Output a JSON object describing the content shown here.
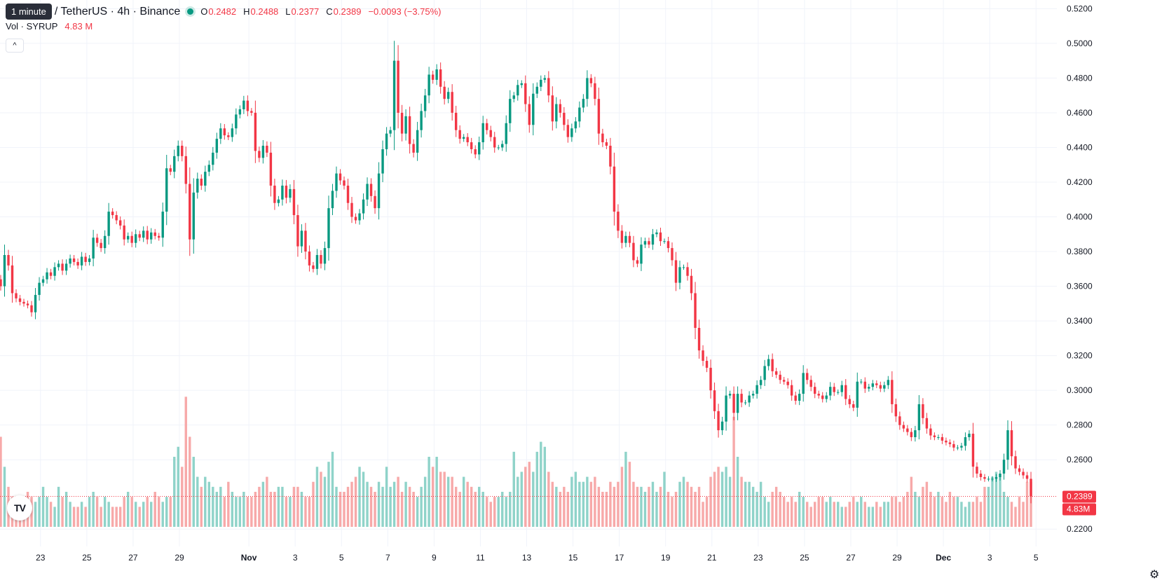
{
  "header": {
    "tooltip": "1 minute",
    "symbol": "/ TetherUS · 4h · Binance",
    "ohlc": [
      {
        "key": "O",
        "value": "0.2482"
      },
      {
        "key": "H",
        "value": "0.2488"
      },
      {
        "key": "L",
        "value": "0.2377"
      },
      {
        "key": "C",
        "value": "0.2389"
      }
    ],
    "change": "−0.0093 (−3.75%)",
    "volume_label": "Vol · SYRUP",
    "volume_value": "4.83 M",
    "collapse_glyph": "^"
  },
  "colors": {
    "up": "#089981",
    "down": "#f23645",
    "up_vol": "#8fd3c9",
    "down_vol": "#f7a9a9",
    "grid": "#f0f3fa"
  },
  "icons": {
    "logo": "tradingview-logo-icon",
    "settings": "gear-icon",
    "collapse": "chevron-up-icon"
  },
  "chart_data": {
    "type": "candlestick",
    "y_axis": {
      "min": 0.21,
      "max": 0.525,
      "ticks": [
        "0.5200",
        "0.5000",
        "0.4800",
        "0.4600",
        "0.4400",
        "0.4200",
        "0.4000",
        "0.3800",
        "0.3600",
        "0.3400",
        "0.3200",
        "0.3000",
        "0.2800",
        "0.2600",
        "0.2200"
      ]
    },
    "x_axis_labels": [
      {
        "label": "23",
        "day": 23
      },
      {
        "label": "25",
        "day": 25
      },
      {
        "label": "27",
        "day": 27
      },
      {
        "label": "29",
        "day": 29
      },
      {
        "label": "Nov",
        "day": 32,
        "bold": true
      },
      {
        "label": "3",
        "day": 34
      },
      {
        "label": "5",
        "day": 36
      },
      {
        "label": "7",
        "day": 38
      },
      {
        "label": "9",
        "day": 40
      },
      {
        "label": "11",
        "day": 42
      },
      {
        "label": "13",
        "day": 44
      },
      {
        "label": "15",
        "day": 46
      },
      {
        "label": "17",
        "day": 48
      },
      {
        "label": "19",
        "day": 50
      },
      {
        "label": "21",
        "day": 52
      },
      {
        "label": "23",
        "day": 54
      },
      {
        "label": "25",
        "day": 56
      },
      {
        "label": "27",
        "day": 58
      },
      {
        "label": "29",
        "day": 60
      },
      {
        "label": "Dec",
        "day": 62,
        "bold": true
      },
      {
        "label": "3",
        "day": 64
      },
      {
        "label": "5",
        "day": 66
      }
    ],
    "x_range_days": [
      21.25,
      66.9
    ],
    "candle_start_day": 21.28,
    "candle_interval_days": 0.16667,
    "last_price": "0.2389",
    "last_volume": "4.83M",
    "closes": [
      0.36,
      0.378,
      0.372,
      0.356,
      0.353,
      0.351,
      0.35,
      0.349,
      0.345,
      0.355,
      0.362,
      0.364,
      0.368,
      0.366,
      0.371,
      0.373,
      0.369,
      0.373,
      0.376,
      0.374,
      0.372,
      0.377,
      0.374,
      0.376,
      0.388,
      0.385,
      0.382,
      0.389,
      0.403,
      0.401,
      0.398,
      0.395,
      0.387,
      0.389,
      0.385,
      0.39,
      0.388,
      0.392,
      0.387,
      0.391,
      0.389,
      0.388,
      0.403,
      0.428,
      0.426,
      0.435,
      0.441,
      0.435,
      0.419,
      0.387,
      0.414,
      0.422,
      0.418,
      0.426,
      0.43,
      0.437,
      0.445,
      0.451,
      0.447,
      0.446,
      0.451,
      0.459,
      0.462,
      0.467,
      0.461,
      0.46,
      0.438,
      0.434,
      0.441,
      0.437,
      0.418,
      0.408,
      0.41,
      0.418,
      0.411,
      0.416,
      0.401,
      0.383,
      0.392,
      0.38,
      0.372,
      0.37,
      0.378,
      0.373,
      0.382,
      0.405,
      0.415,
      0.425,
      0.421,
      0.418,
      0.408,
      0.4,
      0.398,
      0.402,
      0.41,
      0.419,
      0.412,
      0.405,
      0.425,
      0.439,
      0.448,
      0.45,
      0.49,
      0.46,
      0.448,
      0.458,
      0.442,
      0.437,
      0.45,
      0.461,
      0.47,
      0.482,
      0.479,
      0.485,
      0.475,
      0.468,
      0.472,
      0.46,
      0.45,
      0.445,
      0.446,
      0.443,
      0.439,
      0.436,
      0.443,
      0.454,
      0.45,
      0.446,
      0.44,
      0.44,
      0.442,
      0.454,
      0.468,
      0.47,
      0.476,
      0.477,
      0.465,
      0.453,
      0.471,
      0.475,
      0.479,
      0.48,
      0.47,
      0.455,
      0.465,
      0.46,
      0.453,
      0.446,
      0.451,
      0.455,
      0.463,
      0.468,
      0.48,
      0.477,
      0.468,
      0.448,
      0.443,
      0.441,
      0.429,
      0.403,
      0.392,
      0.385,
      0.389,
      0.385,
      0.375,
      0.373,
      0.384,
      0.386,
      0.384,
      0.39,
      0.391,
      0.386,
      0.386,
      0.382,
      0.375,
      0.362,
      0.371,
      0.371,
      0.366,
      0.356,
      0.336,
      0.323,
      0.317,
      0.313,
      0.3,
      0.288,
      0.277,
      0.282,
      0.297,
      0.298,
      0.287,
      0.298,
      0.293,
      0.293,
      0.297,
      0.298,
      0.303,
      0.306,
      0.314,
      0.318,
      0.311,
      0.309,
      0.306,
      0.305,
      0.303,
      0.297,
      0.294,
      0.298,
      0.31,
      0.306,
      0.302,
      0.298,
      0.297,
      0.295,
      0.297,
      0.302,
      0.299,
      0.299,
      0.303,
      0.295,
      0.292,
      0.29,
      0.305,
      0.305,
      0.301,
      0.302,
      0.304,
      0.303,
      0.301,
      0.303,
      0.306,
      0.292,
      0.285,
      0.28,
      0.278,
      0.276,
      0.273,
      0.277,
      0.292,
      0.284,
      0.278,
      0.274,
      0.273,
      0.273,
      0.271,
      0.27,
      0.269,
      0.267,
      0.267,
      0.268,
      0.273,
      0.275,
      0.256,
      0.252,
      0.25,
      0.249,
      0.249,
      0.249,
      0.25,
      0.252,
      0.26,
      0.277,
      0.262,
      0.255,
      0.253,
      0.251,
      0.249,
      0.2389
    ],
    "volumes": [
      0.9,
      0.6,
      0.4,
      0.3,
      0.3,
      0.3,
      0.3,
      0.35,
      0.3,
      0.25,
      0.3,
      0.4,
      0.3,
      0.25,
      0.2,
      0.4,
      0.3,
      0.35,
      0.25,
      0.2,
      0.2,
      0.25,
      0.2,
      0.3,
      0.35,
      0.3,
      0.2,
      0.3,
      0.25,
      0.2,
      0.2,
      0.2,
      0.3,
      0.35,
      0.3,
      0.25,
      0.2,
      0.25,
      0.3,
      0.25,
      0.35,
      0.3,
      0.25,
      0.3,
      0.3,
      0.7,
      0.8,
      0.6,
      1.3,
      0.9,
      0.7,
      0.5,
      0.4,
      0.5,
      0.45,
      0.4,
      0.35,
      0.4,
      0.3,
      0.45,
      0.35,
      0.3,
      0.3,
      0.35,
      0.3,
      0.3,
      0.35,
      0.4,
      0.45,
      0.5,
      0.35,
      0.35,
      0.4,
      0.4,
      0.3,
      0.3,
      0.4,
      0.4,
      0.35,
      0.3,
      0.3,
      0.45,
      0.6,
      0.55,
      0.5,
      0.65,
      0.75,
      0.4,
      0.35,
      0.35,
      0.4,
      0.45,
      0.5,
      0.6,
      0.55,
      0.45,
      0.4,
      0.35,
      0.45,
      0.4,
      0.6,
      0.4,
      0.45,
      0.5,
      0.35,
      0.45,
      0.4,
      0.35,
      0.3,
      0.4,
      0.5,
      0.7,
      0.6,
      0.7,
      0.55,
      0.55,
      0.5,
      0.5,
      0.4,
      0.35,
      0.5,
      0.45,
      0.4,
      0.35,
      0.4,
      0.35,
      0.3,
      0.25,
      0.3,
      0.3,
      0.35,
      0.3,
      0.35,
      0.75,
      0.5,
      0.55,
      0.6,
      0.65,
      0.55,
      0.75,
      0.85,
      0.8,
      0.55,
      0.45,
      0.4,
      0.35,
      0.4,
      0.35,
      0.5,
      0.55,
      0.45,
      0.45,
      0.5,
      0.45,
      0.5,
      0.4,
      0.35,
      0.35,
      0.45,
      0.4,
      0.45,
      0.6,
      0.75,
      0.65,
      0.45,
      0.4,
      0.4,
      0.35,
      0.4,
      0.45,
      0.35,
      0.4,
      0.55,
      0.35,
      0.3,
      0.35,
      0.45,
      0.5,
      0.45,
      0.4,
      0.35,
      0.4,
      0.25,
      0.3,
      0.5,
      0.55,
      0.6,
      0.55,
      0.6,
      0.5,
      1.1,
      0.7,
      0.5,
      0.45,
      0.45,
      0.4,
      0.35,
      0.45,
      0.3,
      0.25,
      0.35,
      0.4,
      0.35,
      0.3,
      0.25,
      0.3,
      0.25,
      0.35,
      0.3,
      0.25,
      0.2,
      0.25,
      0.3,
      0.3,
      0.25,
      0.3,
      0.25,
      0.25,
      0.2,
      0.2,
      0.25,
      0.3,
      0.25,
      0.3,
      0.25,
      0.2,
      0.2,
      0.25,
      0.2,
      0.25,
      0.25,
      0.3,
      0.3,
      0.25,
      0.3,
      0.35,
      0.5,
      0.35,
      0.3,
      0.4,
      0.45,
      0.35,
      0.3,
      0.35,
      0.3,
      0.25,
      0.35,
      0.3,
      0.3,
      0.25,
      0.2,
      0.25,
      0.25,
      0.3,
      0.25,
      0.4,
      0.4,
      0.5,
      0.55,
      0.5,
      0.35,
      0.3,
      0.25,
      0.2,
      0.3,
      0.25,
      0.45,
      0.45,
      0.4,
      0.4,
      0.45,
      0.45,
      0.45,
      0.5,
      0.48
    ]
  }
}
